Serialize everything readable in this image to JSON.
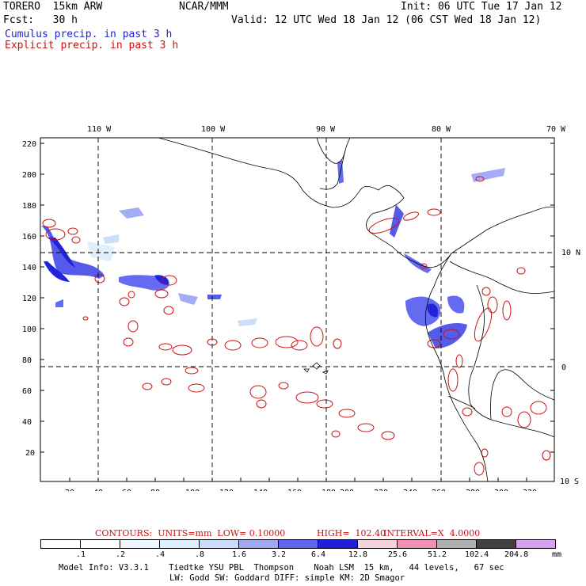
{
  "header": {
    "model": "TORERO  15km ARW",
    "org": "NCAR/MMM",
    "init": "Init: 06 UTC Tue 17 Jan 12",
    "fcst": "Fcst:   30 h",
    "valid": "Valid: 12 UTC Wed 18 Jan 12 (06 CST Wed 18 Jan 12)",
    "line_blue": "Cumulus precip. in past 3 h",
    "line_red": "Explicit precip. in past 3 h"
  },
  "map": {
    "lon_labels": [
      "110 W",
      "100 W",
      "90 W",
      "80 W",
      "70 W"
    ],
    "lat_labels": [
      "10 N",
      "0",
      "10 S"
    ],
    "x_ticks": [
      "20",
      "40",
      "60",
      "80",
      "100",
      "120",
      "140",
      "160",
      "180",
      "200",
      "220",
      "240",
      "260",
      "280",
      "300",
      "320"
    ],
    "y_ticks": [
      "220",
      "200",
      "180",
      "160",
      "140",
      "120",
      "100",
      "80",
      "60",
      "40",
      "20"
    ]
  },
  "legend": {
    "contours": "CONTOURS:  UNITS=mm  LOW= 0.10000",
    "high": "HIGH=  102.40",
    "interval": "INTERVAL=X  4.0000",
    "bins": [
      ".1",
      ".2",
      ".4",
      ".8",
      "1.6",
      "3.2",
      "6.4",
      "12.8",
      "25.6",
      "51.2",
      "102.4",
      "204.8"
    ],
    "unit": "mm",
    "colors": [
      "#ffffff",
      "#ffffff",
      "#eef6ff",
      "#def0fb",
      "#c8def8",
      "#a0a8f4",
      "#5c64f0",
      "#1e1edc",
      "#f4d4dc",
      "#f090b8",
      "#b0b0b0",
      "#404040",
      "#d8a0f0"
    ]
  },
  "footer": {
    "line1": "Model Info: V3.3.1    Tiedtke YSU PBL  Thompson    Noah LSM  15 km,   44 levels,   67 sec",
    "line2": "LW: Godd SW: Goddard DIFF: simple KM: 2D Smagor"
  }
}
